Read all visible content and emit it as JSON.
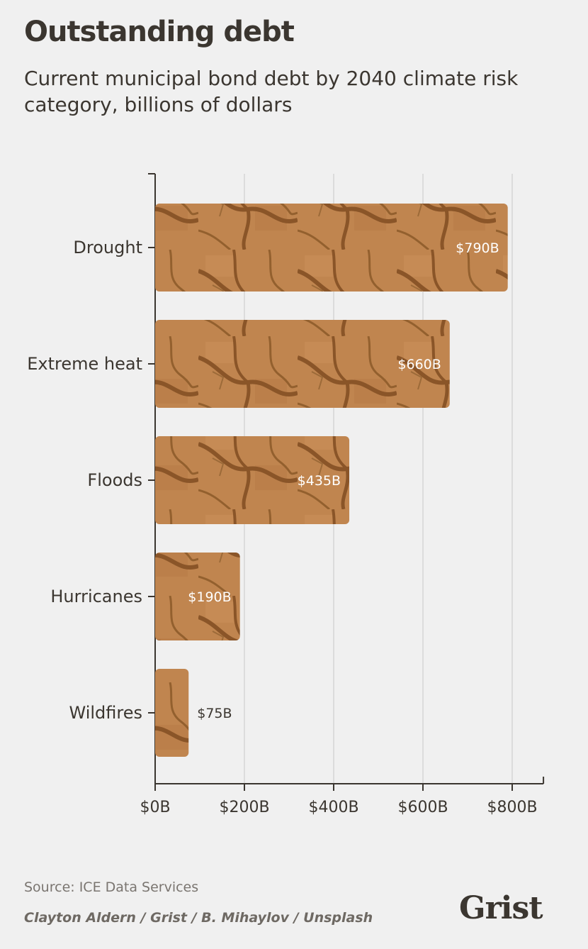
{
  "header": {
    "title": "Outstanding debt",
    "subtitle": "Current municipal bond debt by 2040 climate risk category, billions of dollars"
  },
  "chart_data": {
    "type": "bar",
    "orientation": "horizontal",
    "title": "Outstanding debt",
    "subtitle": "Current municipal bond debt by 2040 climate risk category, billions of dollars",
    "categories": [
      "Drought",
      "Extreme heat",
      "Floods",
      "Hurricanes",
      "Wildfires"
    ],
    "values": [
      790,
      660,
      435,
      190,
      75
    ],
    "data_labels": [
      "$790B",
      "$660B",
      "$435B",
      "$190B",
      "$75B"
    ],
    "x_ticks": [
      0,
      200,
      400,
      600,
      800
    ],
    "x_tick_labels": [
      "$0B",
      "$200B",
      "$400B",
      "$600B",
      "$800B"
    ],
    "xlim": [
      0,
      870
    ],
    "xlabel": "",
    "ylabel": "",
    "grid": true,
    "bar_color": "#c0854f",
    "crack_color": "#8a5528"
  },
  "footer": {
    "source": "Source: ICE Data Services",
    "credit": "Clayton Aldern / Grist / B. Mihaylov / Unsplash",
    "logo": "Grist"
  }
}
